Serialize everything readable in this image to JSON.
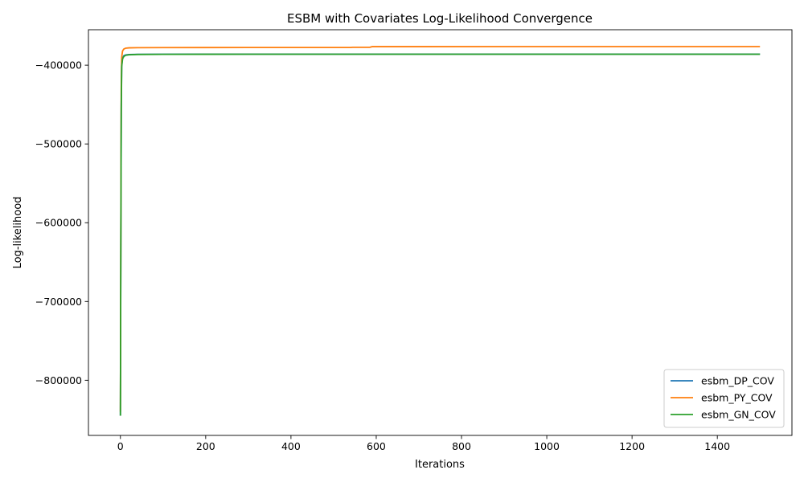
{
  "chart_data": {
    "type": "line",
    "title": "ESBM with Covariates Log-Likelihood Convergence",
    "xlabel": "Iterations",
    "ylabel": "Log-likelihood",
    "xlim": [
      -75,
      1575
    ],
    "ylim": [
      -870000,
      -355000
    ],
    "xticks": [
      0,
      200,
      400,
      600,
      800,
      1000,
      1200,
      1400
    ],
    "yticks": [
      -800000,
      -700000,
      -600000,
      -500000,
      -400000
    ],
    "xtick_labels": [
      "0",
      "200",
      "400",
      "600",
      "800",
      "1000",
      "1200",
      "1400"
    ],
    "ytick_labels": [
      "−800000",
      "−700000",
      "−600000",
      "−500000",
      "−400000"
    ],
    "grid": false,
    "legend_position": "lower-right",
    "series": [
      {
        "name": "esbm_DP_COV",
        "color": "#1f77b4",
        "x": [
          0,
          1,
          2,
          3,
          5,
          8,
          12,
          20,
          40,
          100,
          300,
          600,
          1000,
          1500
        ],
        "y": [
          -845000,
          -620000,
          -450000,
          -400000,
          -391000,
          -388000,
          -387000,
          -386500,
          -386200,
          -386100,
          -386000,
          -386000,
          -386000,
          -386000
        ]
      },
      {
        "name": "esbm_PY_COV",
        "color": "#ff7f0e",
        "x": [
          0,
          1,
          2,
          3,
          5,
          8,
          12,
          20,
          40,
          100,
          300,
          540,
          545,
          585,
          590,
          700,
          1000,
          1500
        ],
        "y": [
          -840000,
          -600000,
          -430000,
          -390000,
          -382000,
          -379500,
          -378500,
          -378000,
          -377800,
          -377700,
          -377600,
          -377600,
          -377300,
          -377300,
          -376500,
          -376500,
          -376400,
          -376400
        ]
      },
      {
        "name": "esbm_GN_COV",
        "color": "#2ca02c",
        "x": [
          0,
          1,
          2,
          3,
          5,
          8,
          12,
          20,
          40,
          100,
          300,
          600,
          1000,
          1500
        ],
        "y": [
          -845000,
          -625000,
          -455000,
          -402000,
          -392000,
          -389000,
          -387500,
          -386800,
          -386400,
          -386200,
          -386100,
          -386100,
          -386100,
          -386100
        ]
      }
    ]
  }
}
